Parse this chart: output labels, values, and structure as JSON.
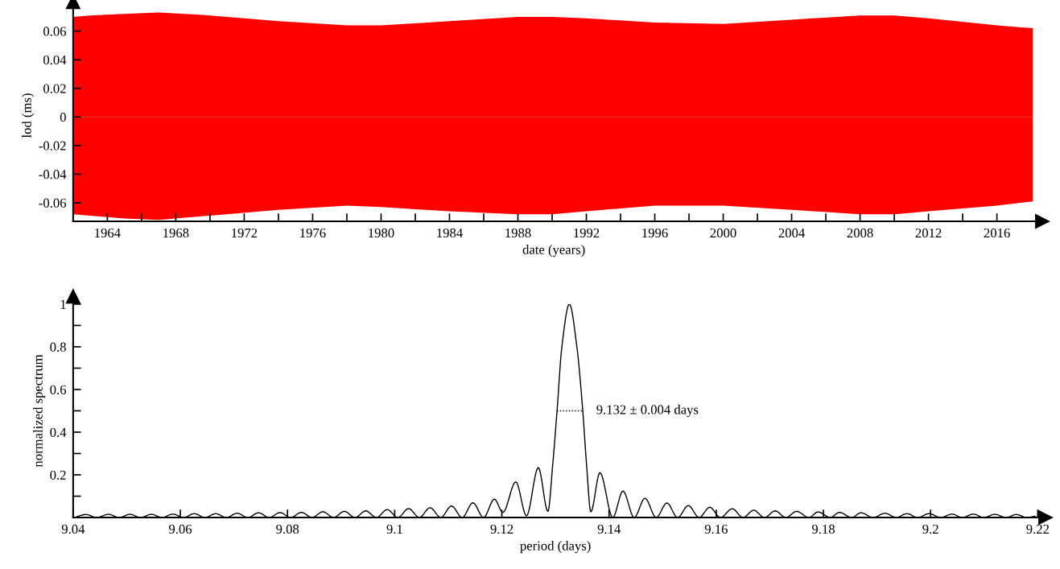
{
  "chart_data": [
    {
      "type": "area",
      "xlabel": "date (years)",
      "ylabel": "lod (ms)",
      "xlim": [
        1962,
        2018.2
      ],
      "ylim": [
        -0.073,
        0.075
      ],
      "xticks": [
        1964,
        {
          "value": 1966,
          "label": null
        },
        1968,
        {
          "value": 1970,
          "label": null
        },
        1972,
        {
          "value": 1974,
          "label": null
        },
        1976,
        {
          "value": 1978,
          "label": null
        },
        1980,
        {
          "value": 1982,
          "label": null
        },
        1984,
        {
          "value": 1986,
          "label": null
        },
        1988,
        {
          "value": 1990,
          "label": null
        },
        1992,
        {
          "value": 1994,
          "label": null
        },
        1996,
        {
          "value": 1998,
          "label": null
        },
        2000,
        {
          "value": 2002,
          "label": null
        },
        2004,
        {
          "value": 2006,
          "label": null
        },
        2008,
        {
          "value": 2010,
          "label": null
        },
        2012,
        {
          "value": 2014,
          "label": null
        },
        2016
      ],
      "yticks": [
        -0.06,
        -0.04,
        -0.02,
        0,
        0.02,
        0.04,
        0.06
      ],
      "x": [
        1962,
        1963,
        1965,
        1967,
        1970,
        1974,
        1978,
        1980,
        1984,
        1988,
        1990,
        1992,
        1996,
        2000,
        2004,
        2008,
        2010,
        2012,
        2016,
        2018.1
      ],
      "series": [
        {
          "color": "#ff0000",
          "values": [
            0.07,
            0.071,
            0.072,
            0.073,
            0.071,
            0.067,
            0.064,
            0.064,
            0.067,
            0.07,
            0.07,
            0.069,
            0.066,
            0.065,
            0.068,
            0.071,
            0.071,
            0.069,
            0.064,
            0.062
          ]
        },
        {
          "color": "#ff0000",
          "values": [
            -0.068,
            -0.069,
            -0.071,
            -0.072,
            -0.069,
            -0.065,
            -0.062,
            -0.063,
            -0.066,
            -0.068,
            -0.068,
            -0.066,
            -0.062,
            -0.062,
            -0.065,
            -0.068,
            -0.068,
            -0.066,
            -0.062,
            -0.059
          ]
        }
      ]
    },
    {
      "type": "line",
      "xlabel": "period (days)",
      "ylabel": "normalized spectrum",
      "xlim": [
        9.04,
        9.22
      ],
      "ylim": [
        0,
        1
      ],
      "xticks": [
        9.04,
        9.06,
        9.08,
        9.1,
        9.12,
        9.14,
        9.16,
        9.18,
        9.2,
        9.22
      ],
      "yticks": [
        {
          "value": 0.1,
          "label": null
        },
        0.2,
        {
          "value": 0.3,
          "label": null
        },
        0.4,
        {
          "value": 0.5,
          "label": null
        },
        0.6,
        {
          "value": 0.7,
          "label": null
        },
        0.8,
        {
          "value": 0.9,
          "label": null
        },
        1
      ],
      "annotations": [
        {
          "text": "9.132 ± 0.004 days",
          "x": 9.1351,
          "y": 0.5
        }
      ],
      "series": [
        {
          "color": "#000000",
          "x": [
            9.0402,
            9.0424,
            9.0444,
            9.0466,
            9.0486,
            9.0506,
            9.0526,
            9.0546,
            9.0566,
            9.0586,
            9.0606,
            9.0626,
            9.0646,
            9.0666,
            9.0686,
            9.0706,
            9.0726,
            9.0746,
            9.0766,
            9.0786,
            9.0806,
            9.0826,
            9.0846,
            9.0866,
            9.0886,
            9.0906,
            9.0926,
            9.0946,
            9.0966,
            9.0986,
            9.1006,
            9.1026,
            9.1046,
            9.1066,
            9.1086,
            9.1106,
            9.1126,
            9.1146,
            9.1166,
            9.1186,
            9.1202,
            9.1226,
            9.1246,
            9.1268,
            9.1286,
            9.1295,
            9.1303,
            9.1312,
            9.1326,
            9.134,
            9.1351,
            9.1358,
            9.1366,
            9.1383,
            9.1407,
            9.1426,
            9.1447,
            9.1467,
            9.1488,
            9.1508,
            9.1528,
            9.1548,
            9.1568,
            9.1588,
            9.1608,
            9.163,
            9.165,
            9.167,
            9.169,
            9.171,
            9.173,
            9.175,
            9.1773,
            9.179,
            9.1813,
            9.183,
            9.1853,
            9.187,
            9.1893,
            9.1915,
            9.1936,
            9.1956,
            9.1976,
            9.1997,
            9.2019,
            9.204,
            9.2059,
            9.208,
            9.2099,
            9.212,
            9.2141,
            9.216,
            9.218,
            9.2195
          ],
          "values": [
            0,
            0.014,
            0,
            0.015,
            0,
            0.015,
            0,
            0.015,
            0,
            0.016,
            0,
            0.018,
            0,
            0.018,
            0,
            0.02,
            0,
            0.022,
            0,
            0.023,
            0,
            0.024,
            0,
            0.027,
            0,
            0.029,
            0,
            0.031,
            0,
            0.037,
            0,
            0.042,
            0,
            0.046,
            0,
            0.054,
            0,
            0.069,
            0,
            0.086,
            0.024,
            0.167,
            0.008,
            0.234,
            0.029,
            0.25,
            0.5,
            0.8,
            1,
            0.8,
            0.5,
            0.25,
            0.027,
            0.21,
            0,
            0.124,
            0,
            0.09,
            0,
            0.068,
            0,
            0.056,
            0,
            0.048,
            0,
            0.041,
            0,
            0.034,
            0,
            0.031,
            0,
            0.029,
            0,
            0.026,
            0,
            0.024,
            0,
            0.022,
            0,
            0.02,
            0,
            0.018,
            0,
            0.018,
            0,
            0.016,
            0,
            0.016,
            0,
            0.015,
            0,
            0.014,
            0,
            0.006
          ]
        },
        {
          "color": "#000000",
          "line_style": "dotted",
          "x": [
            9.1303,
            9.1351
          ],
          "values": [
            0.5,
            0.5
          ]
        }
      ]
    }
  ]
}
